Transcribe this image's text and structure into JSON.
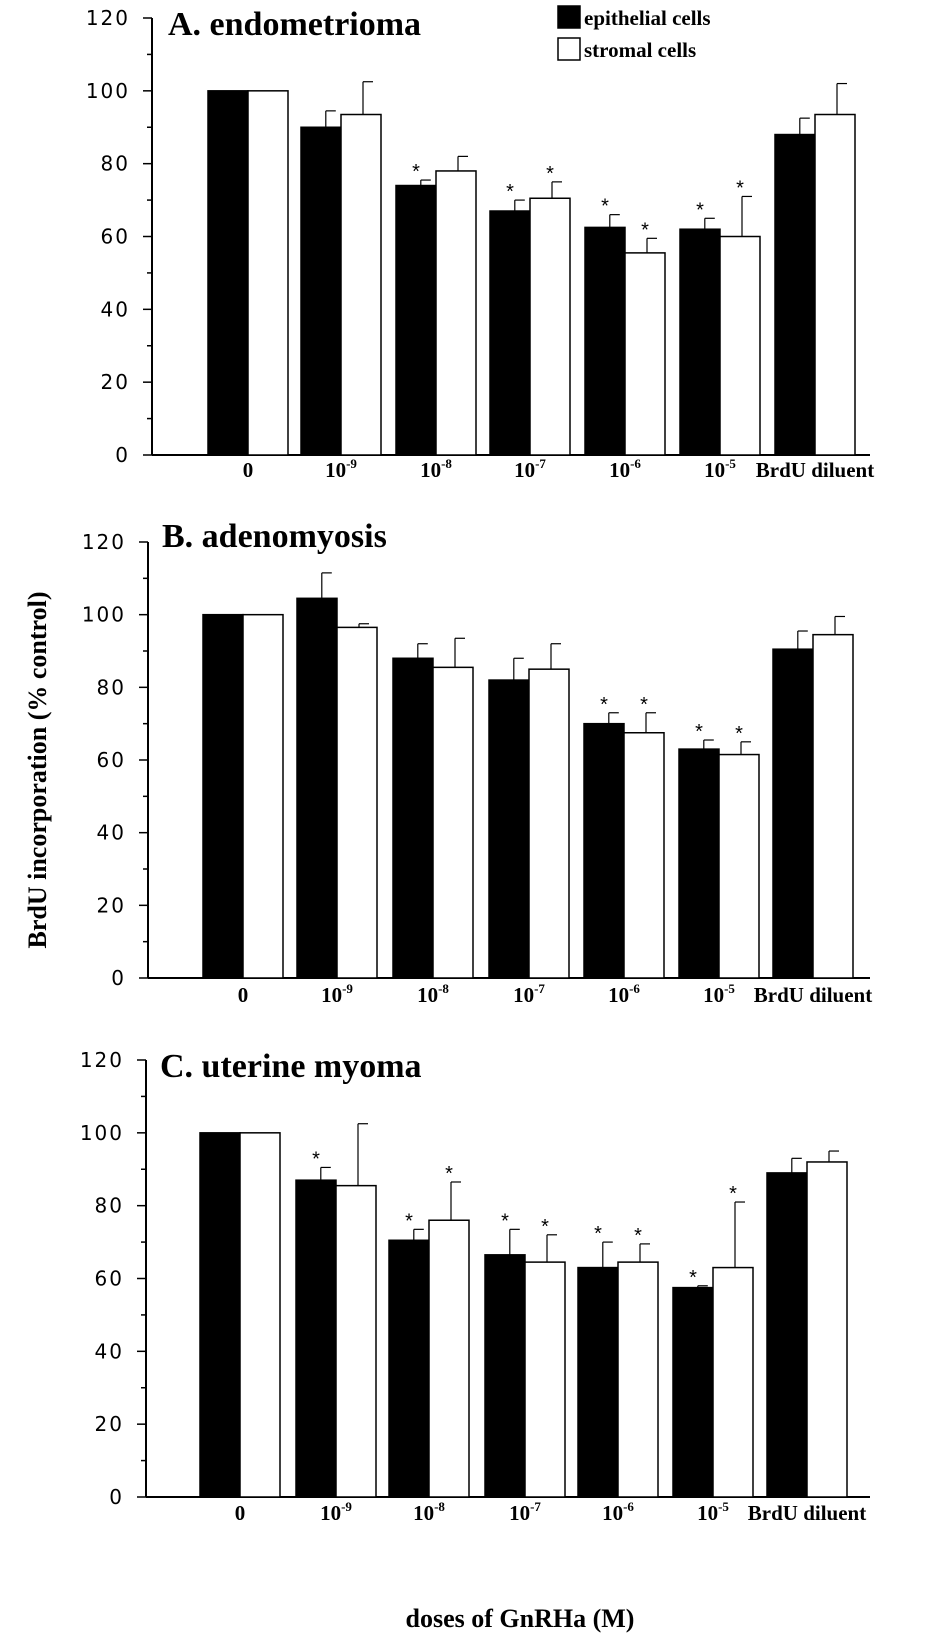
{
  "ylabel": "BrdU incorporation (% control)",
  "xlabel": "doses of GnRHa (M)",
  "legend": [
    {
      "label": "epithelial cells",
      "color": "#000000"
    },
    {
      "label": "stromal cells",
      "color": "#ffffff"
    }
  ],
  "x_ticks": [
    {
      "base": "0",
      "exp": ""
    },
    {
      "base": "10",
      "exp": "-9"
    },
    {
      "base": "10",
      "exp": "-8"
    },
    {
      "base": "10",
      "exp": "-7"
    },
    {
      "base": "10",
      "exp": "-6"
    },
    {
      "base": "10",
      "exp": "-5"
    },
    {
      "base": "BrdU diluent",
      "exp": ""
    }
  ],
  "y_ticks": [
    "0",
    "20",
    "40",
    "60",
    "80",
    "100",
    "120"
  ],
  "significance_marker": "*",
  "chart_data": [
    {
      "type": "bar",
      "title": "A. endometrioma",
      "categories": [
        "0",
        "10-9",
        "10-8",
        "10-7",
        "10-6",
        "10-5",
        "BrdU diluent"
      ],
      "ylim": [
        0,
        120
      ],
      "series": [
        {
          "name": "epithelial cells",
          "values": [
            100,
            90,
            74,
            67,
            62.5,
            62,
            88
          ],
          "errors": [
            0,
            4.5,
            1.5,
            3,
            3.5,
            3,
            4.5
          ],
          "significant": [
            false,
            false,
            true,
            true,
            true,
            true,
            false
          ]
        },
        {
          "name": "stromal cells",
          "values": [
            100,
            93.5,
            78,
            70.5,
            55.5,
            60,
            93.5
          ],
          "errors": [
            0,
            9,
            4,
            4.5,
            4,
            11,
            8.5
          ],
          "significant": [
            false,
            false,
            false,
            true,
            true,
            true,
            false
          ]
        }
      ]
    },
    {
      "type": "bar",
      "title": "B. adenomyosis",
      "categories": [
        "0",
        "10-9",
        "10-8",
        "10-7",
        "10-6",
        "10-5",
        "BrdU diluent"
      ],
      "ylim": [
        0,
        120
      ],
      "series": [
        {
          "name": "epithelial cells",
          "values": [
            100,
            104.5,
            88,
            82,
            70,
            63,
            90.5
          ],
          "errors": [
            0,
            7,
            4,
            6,
            3,
            2.5,
            5
          ],
          "significant": [
            false,
            false,
            false,
            false,
            true,
            true,
            false
          ]
        },
        {
          "name": "stromal cells",
          "values": [
            100,
            96.5,
            85.5,
            85,
            67.5,
            61.5,
            94.5
          ],
          "errors": [
            0,
            1,
            8,
            7,
            5.5,
            3.5,
            5
          ],
          "significant": [
            false,
            false,
            false,
            false,
            true,
            true,
            false
          ]
        }
      ]
    },
    {
      "type": "bar",
      "title": "C. uterine myoma",
      "categories": [
        "0",
        "10-9",
        "10-8",
        "10-7",
        "10-6",
        "10-5",
        "BrdU diluent"
      ],
      "ylim": [
        0,
        120
      ],
      "series": [
        {
          "name": "epithelial cells",
          "values": [
            100,
            87,
            70.5,
            66.5,
            63,
            57.5,
            89
          ],
          "errors": [
            0,
            3.5,
            3,
            7,
            7,
            0.5,
            4
          ],
          "significant": [
            false,
            true,
            true,
            true,
            true,
            true,
            false
          ]
        },
        {
          "name": "stromal cells",
          "values": [
            100,
            85.5,
            76,
            64.5,
            64.5,
            63,
            92
          ],
          "errors": [
            0,
            17,
            10.5,
            7.5,
            5,
            18,
            3
          ],
          "significant": [
            false,
            false,
            true,
            true,
            true,
            true,
            false
          ]
        }
      ]
    }
  ]
}
